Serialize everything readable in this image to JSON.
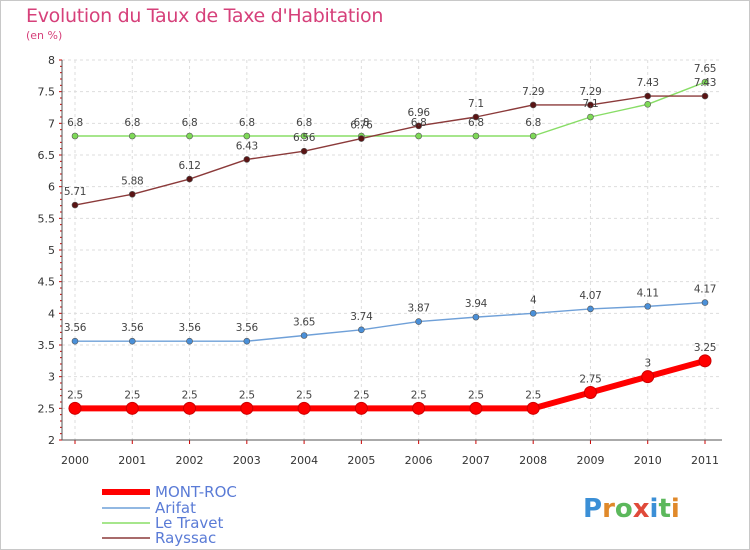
{
  "chart_data": {
    "type": "line",
    "title": "Evolution du Taux de Taxe d'Habitation",
    "subtitle": "(en %)",
    "x": [
      "2000",
      "2001",
      "2002",
      "2003",
      "2004",
      "2005",
      "2006",
      "2007",
      "2008",
      "2009",
      "2010",
      "2011"
    ],
    "ylim": [
      2,
      8
    ],
    "yticks": [
      "2",
      "2.5",
      "3",
      "3.5",
      "4",
      "4.5",
      "5",
      "5.5",
      "6",
      "6.5",
      "7",
      "7.5",
      "8"
    ],
    "grid": true,
    "legend_position": "bottom-left",
    "series": [
      {
        "name": "MONT-ROC",
        "color": "#ff0000",
        "values": [
          2.5,
          2.5,
          2.5,
          2.5,
          2.5,
          2.5,
          2.5,
          2.5,
          2.5,
          2.75,
          3,
          3.25
        ],
        "labels": [
          "2.5",
          "2.5",
          "2.5",
          "2.5",
          "2.5",
          "2.5",
          "2.5",
          "2.5",
          "2.5",
          "2.75",
          "3",
          "3.25"
        ]
      },
      {
        "name": "Arifat",
        "color": "#6fa0d8",
        "values": [
          3.56,
          3.56,
          3.56,
          3.56,
          3.65,
          3.74,
          3.87,
          3.94,
          4,
          4.07,
          4.11,
          4.17
        ],
        "labels": [
          "3.56",
          "3.56",
          "3.56",
          "3.56",
          "3.65",
          "3.74",
          "3.87",
          "3.94",
          "4",
          "4.07",
          "4.11",
          "4.17"
        ]
      },
      {
        "name": "Le Travet",
        "color": "#88dd66",
        "values": [
          6.8,
          6.8,
          6.8,
          6.8,
          6.8,
          6.8,
          6.8,
          6.8,
          6.8,
          7.1,
          7.3,
          7.65
        ],
        "labels": [
          "6.8",
          "6.8",
          "6.8",
          "6.8",
          "6.8",
          "6.8",
          "6.8",
          "6.8",
          "6.8",
          "7.1",
          "",
          "7.65"
        ]
      },
      {
        "name": "Rayssac",
        "color": "#8b3a3a",
        "values": [
          5.71,
          5.88,
          6.12,
          6.43,
          6.56,
          6.76,
          6.96,
          7.1,
          7.29,
          7.29,
          7.43,
          7.43
        ],
        "labels": [
          "5.71",
          "5.88",
          "6.12",
          "6.43",
          "6.56",
          "6.76",
          "6.96",
          "7.1",
          "7.29",
          "7.29",
          "7.43",
          "7.43"
        ]
      }
    ]
  },
  "logo": {
    "text": "Proxiti"
  }
}
